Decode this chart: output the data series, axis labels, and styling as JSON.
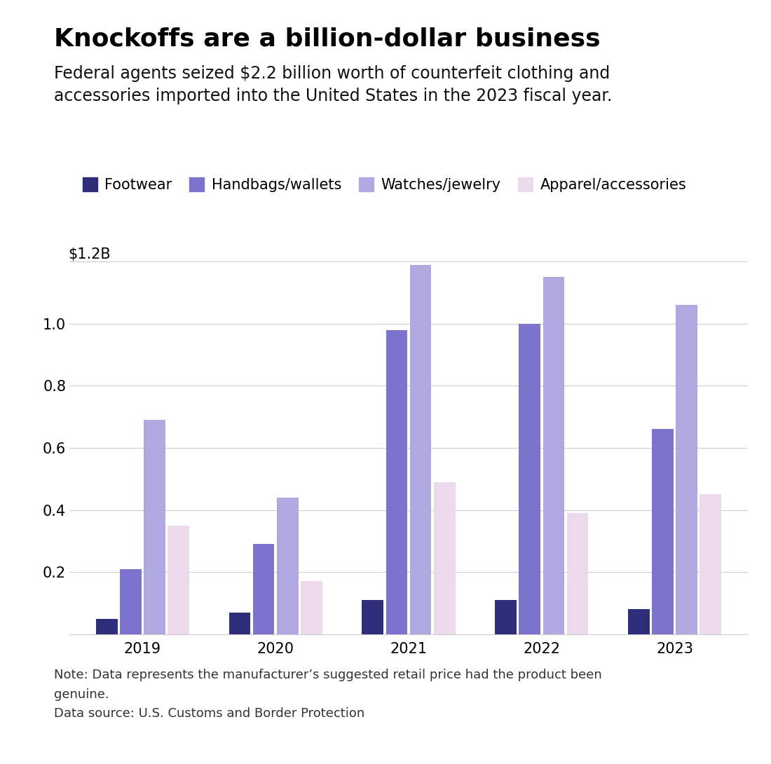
{
  "title": "Knockoffs are a billion-dollar business",
  "subtitle": "Federal agents seized $2.2 billion worth of counterfeit clothing and\naccessories imported into the United States in the 2023 fiscal year.",
  "note": "Note: Data represents the manufacturer’s suggested retail price had the product been\ngenuine.\nData source: U.S. Customs and Border Protection",
  "years": [
    2019,
    2020,
    2021,
    2022,
    2023
  ],
  "categories": [
    "Footwear",
    "Handbags/wallets",
    "Watches/jewelry",
    "Apparel/accessories"
  ],
  "colors": [
    "#2e2d7a",
    "#7b73cc",
    "#b0a8e0",
    "#ecd9ec"
  ],
  "data": {
    "Footwear": [
      0.05,
      0.07,
      0.11,
      0.11,
      0.08
    ],
    "Handbags/wallets": [
      0.21,
      0.29,
      0.98,
      1.0,
      0.66
    ],
    "Watches/jewelry": [
      0.69,
      0.44,
      1.19,
      1.15,
      1.06
    ],
    "Apparel/accessories": [
      0.35,
      0.17,
      0.49,
      0.39,
      0.45
    ]
  },
  "ylim": [
    0,
    1.28
  ],
  "yticks": [
    0.2,
    0.4,
    0.6,
    0.8,
    1.0
  ],
  "ytick_labels": [
    "0.2",
    "0.4",
    "0.6",
    "0.8",
    "1.0"
  ],
  "ylabel_top": "$1.2B",
  "ylabel_top_y": 1.2,
  "background_color": "#ffffff",
  "title_fontsize": 26,
  "subtitle_fontsize": 17,
  "note_fontsize": 13,
  "legend_fontsize": 15,
  "tick_fontsize": 15
}
